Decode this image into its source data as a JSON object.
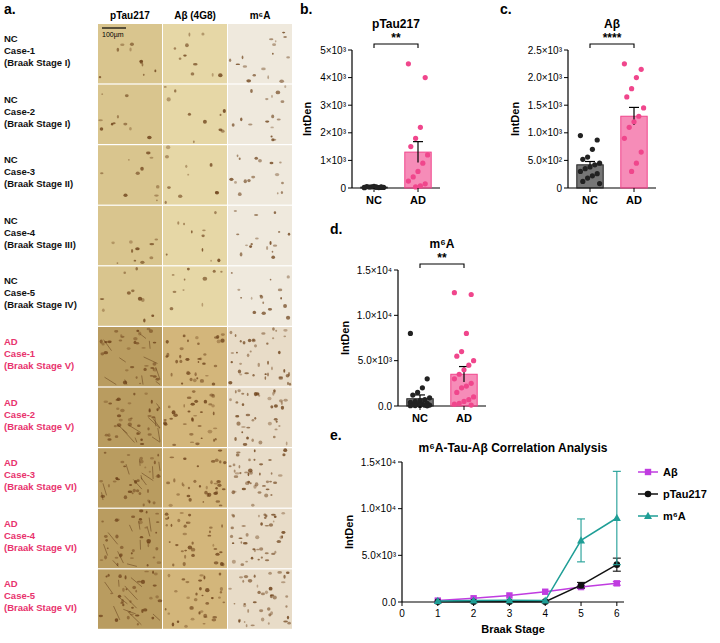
{
  "image_panel": {
    "panel": "a.",
    "columns": [
      "pTau217",
      "Aβ (4G8)",
      "m⁶A"
    ],
    "scale_bar": "100µm",
    "rows": [
      {
        "label": [
          "NC",
          "Case-1",
          "(Braak Stage I)"
        ],
        "color": "#111111"
      },
      {
        "label": [
          "NC",
          "Case-2",
          "(Braak Stage I)"
        ],
        "color": "#111111"
      },
      {
        "label": [
          "NC",
          "Case-3",
          "(Braak Stage II)"
        ],
        "color": "#111111"
      },
      {
        "label": [
          "NC",
          "Case-4",
          "(Braak Stage III)"
        ],
        "color": "#111111"
      },
      {
        "label": [
          "NC",
          "Case-5",
          "(Braak Stage IV)"
        ],
        "color": "#111111"
      },
      {
        "label": [
          "AD",
          "Case-1",
          "(Braak Stage V)"
        ],
        "color": "#e8336d"
      },
      {
        "label": [
          "AD",
          "Case-2",
          "(Braak Stage V)"
        ],
        "color": "#e8336d"
      },
      {
        "label": [
          "AD",
          "Case-3",
          "(Braak Stage VI)"
        ],
        "color": "#e8336d"
      },
      {
        "label": [
          "AD",
          "Case-4",
          "(Braak Stage VI)"
        ],
        "color": "#e8336d"
      },
      {
        "label": [
          "AD",
          "Case-5",
          "(Braak Stage VI)"
        ],
        "color": "#e8336d"
      }
    ]
  },
  "chart_data": [
    {
      "type": "bar",
      "panel": "b.",
      "title": "pTau217",
      "y_label": "IntDen",
      "categories": [
        "NC",
        "AD"
      ],
      "values": [
        32,
        1300
      ],
      "errors": [
        6,
        380
      ],
      "colors": [
        "#222222",
        "#f0468c"
      ],
      "points": [
        [
          10,
          20,
          30,
          40,
          50,
          20,
          15,
          60,
          35,
          25,
          45,
          30
        ],
        [
          4500,
          4000,
          2200,
          1800,
          1500,
          1200,
          900,
          600,
          400,
          250,
          150,
          80,
          40
        ]
      ],
      "significance": "**",
      "ylim": [
        0,
        5000
      ],
      "yticks": [
        0,
        {
          "value": 1000,
          "label": "1×10³"
        },
        {
          "value": 2000,
          "label": "2×10³"
        },
        {
          "value": 3000,
          "label": "3×10³"
        },
        {
          "value": 4000,
          "label": "4×10³"
        },
        {
          "value": 5000,
          "label": "5×10³"
        }
      ]
    },
    {
      "type": "bar",
      "panel": "c.",
      "title": "Aβ",
      "y_label": "IntDen",
      "categories": [
        "NC",
        "AD"
      ],
      "values": [
        420,
        1300
      ],
      "errors": [
        60,
        160
      ],
      "colors": [
        "#222222",
        "#f0468c"
      ],
      "points": [
        [
          950,
          870,
          700,
          560,
          520,
          450,
          420,
          380,
          350,
          300,
          260,
          220,
          180,
          120,
          80
        ],
        [
          2250,
          2150,
          2000,
          1800,
          1650,
          1450,
          1300,
          1200,
          1100,
          900,
          650,
          450,
          300
        ]
      ],
      "significance": "****",
      "ylim": [
        0,
        2500
      ],
      "yticks": [
        0,
        {
          "value": 500,
          "label": "5.0×10²"
        },
        {
          "value": 1000,
          "label": "1.0×10³"
        },
        {
          "value": 1500,
          "label": "1.5×10³"
        },
        {
          "value": 2000,
          "label": "2.0×10³"
        },
        {
          "value": 2500,
          "label": "2.5×10³"
        }
      ]
    },
    {
      "type": "bar",
      "panel": "d.",
      "title": "m⁶A",
      "y_label": "IntDen",
      "categories": [
        "NC",
        "AD"
      ],
      "values": [
        800,
        3500
      ],
      "errors": [
        420,
        850
      ],
      "colors": [
        "#222222",
        "#f0468c"
      ],
      "points": [
        [
          8000,
          3000,
          2000,
          1500,
          1200,
          900,
          700,
          600,
          500,
          400,
          300,
          250,
          200,
          150,
          100,
          80,
          60,
          50,
          30,
          20
        ],
        [
          12500,
          12300,
          8000,
          6000,
          5500,
          5000,
          4500,
          4000,
          3500,
          3000,
          2500,
          2200,
          2000,
          1500,
          1000,
          700,
          500,
          300,
          200,
          100
        ]
      ],
      "significance": "**",
      "ylim": [
        0,
        15000
      ],
      "yticks": [
        {
          "value": 0,
          "label": "0.0"
        },
        {
          "value": 5000,
          "label": "5.0×10³"
        },
        {
          "value": 10000,
          "label": "1.0×10⁴"
        },
        {
          "value": 15000,
          "label": "1.5×10⁴"
        }
      ]
    },
    {
      "type": "line",
      "panel": "e.",
      "title": "m⁶A-Tau-Aβ Correlation Analysis",
      "x_label": "Braak Stage",
      "y_label": "IntDen",
      "x": [
        1,
        2,
        3,
        4,
        5,
        6
      ],
      "series": [
        {
          "name": "Aβ",
          "color": "#c03ce0",
          "marker": "square",
          "values": [
            150,
            400,
            700,
            1100,
            1600,
            2000
          ],
          "errors": [
            null,
            null,
            null,
            null,
            150,
            200
          ]
        },
        {
          "name": "pTau217",
          "color": "#111111",
          "marker": "circle",
          "values": [
            30,
            20,
            20,
            40,
            1800,
            4000
          ],
          "errors": [
            null,
            null,
            null,
            null,
            300,
            700
          ]
        },
        {
          "name": "m⁶A",
          "color": "#1f9e96",
          "marker": "triangle",
          "values": [
            100,
            150,
            200,
            150,
            6600,
            9000
          ],
          "errors": [
            null,
            null,
            null,
            null,
            2300,
            5000
          ]
        }
      ],
      "legend": "right",
      "xlim": [
        0,
        6.2
      ],
      "xticks": [
        0,
        1,
        2,
        3,
        4,
        5,
        6
      ],
      "ylim": [
        0,
        15000
      ],
      "yticks": [
        {
          "value": 0,
          "label": "0.0"
        },
        {
          "value": 5000,
          "label": "5.0×10³"
        },
        {
          "value": 10000,
          "label": "1.0×10⁴"
        },
        {
          "value": 15000,
          "label": "1.5×10⁴"
        }
      ]
    }
  ]
}
